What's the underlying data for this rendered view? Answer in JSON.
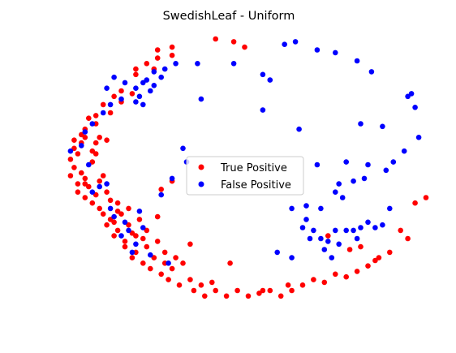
{
  "chart_data": {
    "type": "scatter",
    "title": "SwedishLeaf - Uniform",
    "xlabel": "",
    "ylabel": "",
    "axes_visible": false,
    "grid": false,
    "xlim": [
      0,
      1
    ],
    "ylim": [
      0,
      1
    ],
    "legend": {
      "placement": "center",
      "entries": [
        "True Positive",
        "False Positive"
      ]
    },
    "series": [
      {
        "name": "True Positive",
        "color": "#ff0000",
        "points": [
          [
            0.42,
            1.0
          ],
          [
            0.47,
            0.99
          ],
          [
            0.5,
            0.97
          ],
          [
            0.3,
            0.97
          ],
          [
            0.26,
            0.96
          ],
          [
            0.3,
            0.94
          ],
          [
            0.26,
            0.93
          ],
          [
            0.23,
            0.91
          ],
          [
            0.2,
            0.89
          ],
          [
            0.25,
            0.89
          ],
          [
            0.2,
            0.87
          ],
          [
            0.16,
            0.81
          ],
          [
            0.14,
            0.79
          ],
          [
            0.16,
            0.77
          ],
          [
            0.19,
            0.8
          ],
          [
            0.11,
            0.76
          ],
          [
            0.09,
            0.72
          ],
          [
            0.13,
            0.73
          ],
          [
            0.07,
            0.71
          ],
          [
            0.09,
            0.69
          ],
          [
            0.06,
            0.67
          ],
          [
            0.03,
            0.63
          ],
          [
            0.05,
            0.62
          ],
          [
            0.06,
            0.64
          ],
          [
            0.09,
            0.62
          ],
          [
            0.1,
            0.64
          ],
          [
            0.12,
            0.63
          ],
          [
            0.03,
            0.6
          ],
          [
            0.04,
            0.58
          ],
          [
            0.08,
            0.59
          ],
          [
            0.02,
            0.56
          ],
          [
            0.03,
            0.53
          ],
          [
            0.05,
            0.51
          ],
          [
            0.02,
            0.5
          ],
          [
            0.06,
            0.49
          ],
          [
            0.04,
            0.47
          ],
          [
            0.07,
            0.46
          ],
          [
            0.1,
            0.48
          ],
          [
            0.04,
            0.44
          ],
          [
            0.06,
            0.42
          ],
          [
            0.09,
            0.43
          ],
          [
            0.12,
            0.44
          ],
          [
            0.08,
            0.4
          ],
          [
            0.1,
            0.38
          ],
          [
            0.13,
            0.41
          ],
          [
            0.15,
            0.4
          ],
          [
            0.11,
            0.36
          ],
          [
            0.13,
            0.34
          ],
          [
            0.16,
            0.36
          ],
          [
            0.18,
            0.38
          ],
          [
            0.12,
            0.32
          ],
          [
            0.15,
            0.3
          ],
          [
            0.18,
            0.32
          ],
          [
            0.21,
            0.34
          ],
          [
            0.14,
            0.28
          ],
          [
            0.17,
            0.26
          ],
          [
            0.2,
            0.28
          ],
          [
            0.23,
            0.3
          ],
          [
            0.17,
            0.24
          ],
          [
            0.2,
            0.22
          ],
          [
            0.23,
            0.24
          ],
          [
            0.26,
            0.26
          ],
          [
            0.19,
            0.2
          ],
          [
            0.22,
            0.18
          ],
          [
            0.25,
            0.2
          ],
          [
            0.28,
            0.22
          ],
          [
            0.24,
            0.16
          ],
          [
            0.27,
            0.14
          ],
          [
            0.3,
            0.16
          ],
          [
            0.33,
            0.18
          ],
          [
            0.29,
            0.12
          ],
          [
            0.32,
            0.1
          ],
          [
            0.35,
            0.12
          ],
          [
            0.38,
            0.1
          ],
          [
            0.36,
            0.08
          ],
          [
            0.39,
            0.06
          ],
          [
            0.42,
            0.08
          ],
          [
            0.45,
            0.06
          ],
          [
            0.48,
            0.08
          ],
          [
            0.51,
            0.06
          ],
          [
            0.54,
            0.07
          ],
          [
            0.57,
            0.08
          ],
          [
            0.6,
            0.06
          ],
          [
            0.63,
            0.08
          ],
          [
            0.66,
            0.1
          ],
          [
            0.69,
            0.12
          ],
          [
            0.72,
            0.11
          ],
          [
            0.75,
            0.14
          ],
          [
            0.78,
            0.13
          ],
          [
            0.81,
            0.15
          ],
          [
            0.84,
            0.17
          ],
          [
            0.87,
            0.2
          ],
          [
            0.9,
            0.22
          ],
          [
            0.95,
            0.27
          ],
          [
            0.97,
            0.4
          ],
          [
            1.0,
            0.42
          ],
          [
            0.73,
            0.28
          ],
          [
            0.62,
            0.1
          ],
          [
            0.46,
            0.18
          ],
          [
            0.27,
            0.45
          ],
          [
            0.05,
            0.65
          ],
          [
            0.09,
            0.58
          ],
          [
            0.3,
            0.48
          ],
          [
            0.35,
            0.25
          ],
          [
            0.26,
            0.35
          ],
          [
            0.82,
            0.24
          ],
          [
            0.79,
            0.23
          ],
          [
            0.86,
            0.19
          ],
          [
            0.93,
            0.3
          ],
          [
            0.55,
            0.08
          ],
          [
            0.41,
            0.11
          ],
          [
            0.31,
            0.2
          ],
          [
            0.22,
            0.27
          ],
          [
            0.15,
            0.37
          ],
          [
            0.11,
            0.5
          ],
          [
            0.08,
            0.55
          ],
          [
            0.06,
            0.47
          ],
          [
            0.14,
            0.33
          ],
          [
            0.19,
            0.29
          ],
          [
            0.28,
            0.18
          ]
        ]
      },
      {
        "name": "False Positive",
        "color": "#0000ff",
        "points": [
          [
            0.61,
            0.98
          ],
          [
            0.64,
            0.99
          ],
          [
            0.7,
            0.96
          ],
          [
            0.75,
            0.95
          ],
          [
            0.81,
            0.92
          ],
          [
            0.85,
            0.88
          ],
          [
            0.47,
            0.91
          ],
          [
            0.31,
            0.91
          ],
          [
            0.28,
            0.89
          ],
          [
            0.25,
            0.88
          ],
          [
            0.27,
            0.86
          ],
          [
            0.23,
            0.85
          ],
          [
            0.25,
            0.83
          ],
          [
            0.22,
            0.84
          ],
          [
            0.24,
            0.81
          ],
          [
            0.2,
            0.82
          ],
          [
            0.21,
            0.79
          ],
          [
            0.17,
            0.84
          ],
          [
            0.14,
            0.86
          ],
          [
            0.12,
            0.82
          ],
          [
            0.22,
            0.76
          ],
          [
            0.2,
            0.77
          ],
          [
            0.16,
            0.78
          ],
          [
            0.13,
            0.76
          ],
          [
            0.11,
            0.73
          ],
          [
            0.08,
            0.69
          ],
          [
            0.06,
            0.66
          ],
          [
            0.05,
            0.61
          ],
          [
            0.02,
            0.59
          ],
          [
            0.37,
            0.91
          ],
          [
            0.55,
            0.87
          ],
          [
            0.57,
            0.85
          ],
          [
            0.38,
            0.78
          ],
          [
            0.55,
            0.74
          ],
          [
            0.95,
            0.79
          ],
          [
            0.97,
            0.75
          ],
          [
            0.96,
            0.8
          ],
          [
            0.88,
            0.68
          ],
          [
            0.82,
            0.69
          ],
          [
            0.98,
            0.64
          ],
          [
            0.94,
            0.59
          ],
          [
            0.91,
            0.55
          ],
          [
            0.89,
            0.52
          ],
          [
            0.84,
            0.54
          ],
          [
            0.78,
            0.55
          ],
          [
            0.7,
            0.54
          ],
          [
            0.76,
            0.47
          ],
          [
            0.8,
            0.48
          ],
          [
            0.83,
            0.49
          ],
          [
            0.75,
            0.44
          ],
          [
            0.77,
            0.42
          ],
          [
            0.71,
            0.38
          ],
          [
            0.67,
            0.39
          ],
          [
            0.63,
            0.38
          ],
          [
            0.67,
            0.34
          ],
          [
            0.69,
            0.3
          ],
          [
            0.71,
            0.27
          ],
          [
            0.73,
            0.26
          ],
          [
            0.75,
            0.3
          ],
          [
            0.78,
            0.3
          ],
          [
            0.8,
            0.3
          ],
          [
            0.82,
            0.31
          ],
          [
            0.84,
            0.33
          ],
          [
            0.86,
            0.31
          ],
          [
            0.88,
            0.32
          ],
          [
            0.9,
            0.38
          ],
          [
            0.74,
            0.2
          ],
          [
            0.72,
            0.23
          ],
          [
            0.68,
            0.27
          ],
          [
            0.63,
            0.2
          ],
          [
            0.59,
            0.22
          ],
          [
            0.66,
            0.31
          ],
          [
            0.76,
            0.25
          ],
          [
            0.81,
            0.27
          ],
          [
            0.34,
            0.55
          ],
          [
            0.33,
            0.6
          ],
          [
            0.3,
            0.49
          ],
          [
            0.27,
            0.43
          ],
          [
            0.21,
            0.37
          ],
          [
            0.13,
            0.38
          ],
          [
            0.1,
            0.46
          ],
          [
            0.07,
            0.54
          ],
          [
            0.16,
            0.28
          ],
          [
            0.17,
            0.33
          ],
          [
            0.14,
            0.35
          ],
          [
            0.2,
            0.25
          ],
          [
            0.24,
            0.21
          ],
          [
            0.29,
            0.18
          ],
          [
            0.22,
            0.31
          ],
          [
            0.18,
            0.3
          ],
          [
            0.65,
            0.67
          ],
          [
            0.12,
            0.47
          ],
          [
            0.08,
            0.44
          ],
          [
            0.19,
            0.22
          ]
        ]
      }
    ]
  }
}
